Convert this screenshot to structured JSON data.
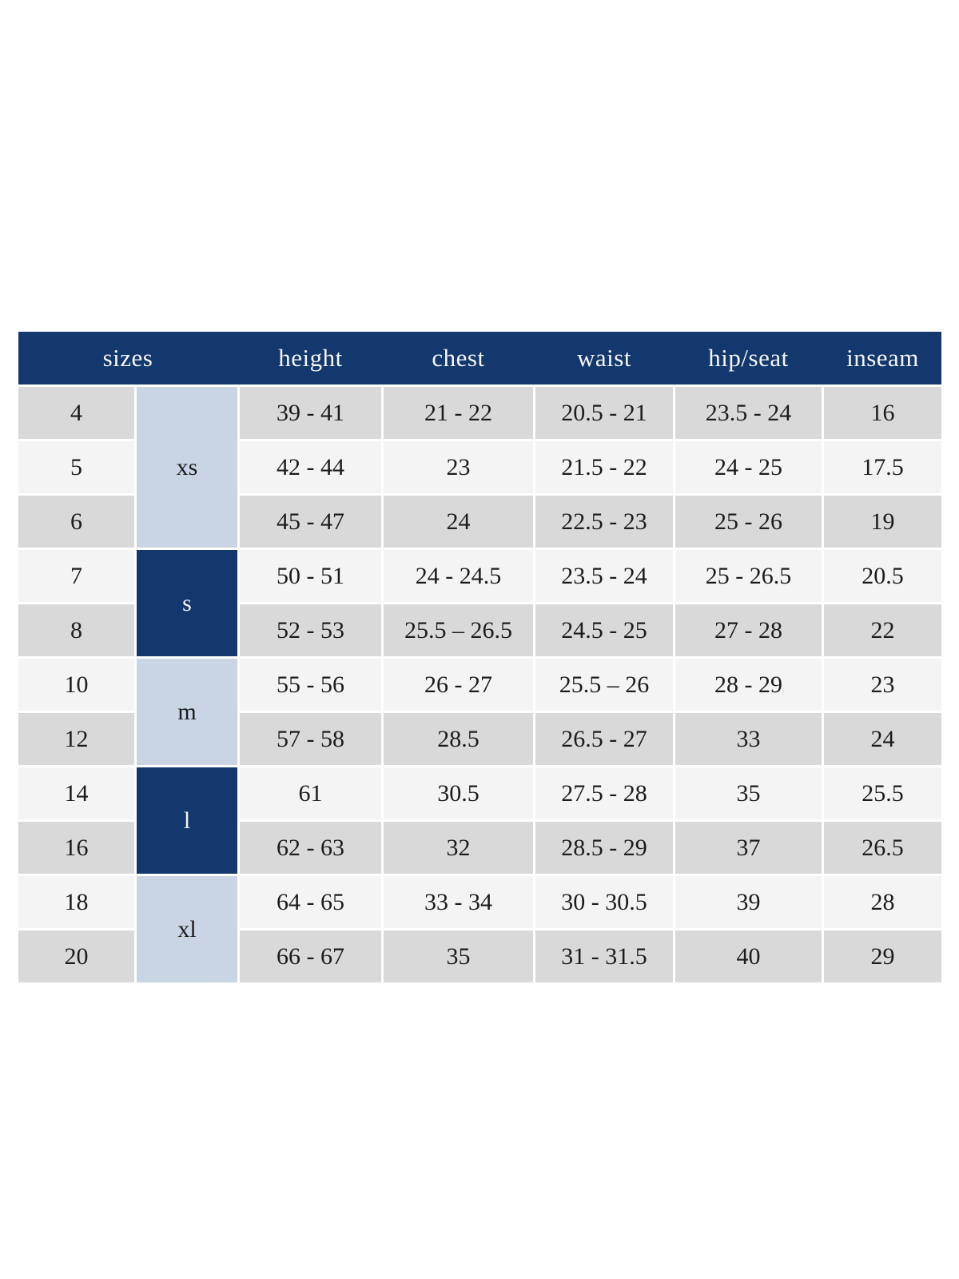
{
  "table": {
    "header": {
      "sizes": "sizes",
      "height": "height",
      "chest": "chest",
      "waist": "waist",
      "hip_seat": "hip/seat",
      "inseam": "inseam"
    },
    "size_groups": [
      {
        "label": "xs",
        "rows": 3,
        "variant": "light"
      },
      {
        "label": "s",
        "rows": 2,
        "variant": "dark"
      },
      {
        "label": "m",
        "rows": 2,
        "variant": "light"
      },
      {
        "label": "l",
        "rows": 2,
        "variant": "dark"
      },
      {
        "label": "xl",
        "rows": 2,
        "variant": "light"
      }
    ],
    "rows": [
      {
        "size": "4",
        "height": "39 - 41",
        "chest": "21 - 22",
        "waist": "20.5 - 21",
        "hip": "23.5 - 24",
        "inseam": "16"
      },
      {
        "size": "5",
        "height": "42 - 44",
        "chest": "23",
        "waist": "21.5 - 22",
        "hip": "24 - 25",
        "inseam": "17.5"
      },
      {
        "size": "6",
        "height": "45 - 47",
        "chest": "24",
        "waist": "22.5 - 23",
        "hip": "25 - 26",
        "inseam": "19"
      },
      {
        "size": "7",
        "height": "50 - 51",
        "chest": "24 - 24.5",
        "waist": "23.5 - 24",
        "hip": "25 - 26.5",
        "inseam": "20.5"
      },
      {
        "size": "8",
        "height": "52 - 53",
        "chest": "25.5 – 26.5",
        "waist": "24.5 - 25",
        "hip": "27 - 28",
        "inseam": "22"
      },
      {
        "size": "10",
        "height": "55 - 56",
        "chest": "26 - 27",
        "waist": "25.5 – 26",
        "hip": "28 - 29",
        "inseam": "23"
      },
      {
        "size": "12",
        "height": "57 - 58",
        "chest": "28.5",
        "waist": "26.5 - 27",
        "hip": "33",
        "inseam": "24"
      },
      {
        "size": "14",
        "height": "61",
        "chest": "30.5",
        "waist": "27.5 - 28",
        "hip": "35",
        "inseam": "25.5"
      },
      {
        "size": "16",
        "height": "62 - 63",
        "chest": "32",
        "waist": "28.5 - 29",
        "hip": "37",
        "inseam": "26.5"
      },
      {
        "size": "18",
        "height": "64 - 65",
        "chest": "33 - 34",
        "waist": "30 - 30.5",
        "hip": "39",
        "inseam": "28"
      },
      {
        "size": "20",
        "height": "66 - 67",
        "chest": "35",
        "waist": "31 - 31.5",
        "hip": "40",
        "inseam": "29"
      }
    ],
    "colors": {
      "header_bg": "#12386D",
      "header_text": "#F6F6F6",
      "group_light_bg": "#C9D5E4",
      "group_dark_bg": "#12386D",
      "group_dark_text": "#F6F6F6",
      "row_odd_bg": "#D9D9D9",
      "row_even_bg": "#F4F4F4",
      "cell_text": "#1C1C1C"
    }
  }
}
